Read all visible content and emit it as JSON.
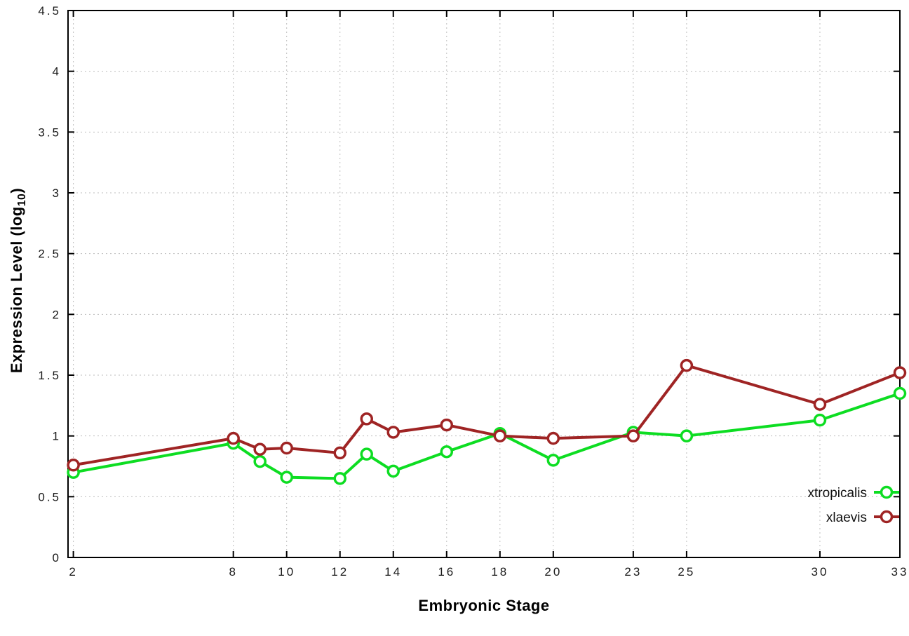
{
  "chart_data": {
    "type": "line",
    "title": "",
    "xlabel": "Embryonic Stage",
    "ylabel_prefix": "Expression Level (log",
    "ylabel_sub": "10",
    "ylabel_suffix": ")",
    "xlim": [
      1.8,
      33
    ],
    "ylim": [
      0,
      4.5
    ],
    "grid": true,
    "legend_position": "bottom-right-inside",
    "x": [
      2,
      8,
      9,
      10,
      12,
      13,
      14,
      16,
      18,
      20,
      23,
      25,
      30,
      33
    ],
    "x_ticks": [
      2,
      8,
      10,
      12,
      14,
      16,
      18,
      20,
      23,
      25,
      30,
      33
    ],
    "x_tick_labels": [
      "2",
      "8",
      "10",
      "12",
      "14",
      "16",
      "18",
      "20",
      "23",
      "25",
      "30",
      "33"
    ],
    "y_ticks": [
      0,
      0.5,
      1,
      1.5,
      2,
      2.5,
      3,
      3.5,
      4,
      4.5
    ],
    "y_tick_labels": [
      "0",
      "0.5",
      "1",
      "1.5",
      "2",
      "2.5",
      "3",
      "3.5",
      "4",
      "4.5"
    ],
    "series": [
      {
        "name": "xtropicalis",
        "color": "#0ddd22",
        "values": [
          0.7,
          0.94,
          0.79,
          0.66,
          0.65,
          0.85,
          0.71,
          0.87,
          1.02,
          0.8,
          1.03,
          1.0,
          1.13,
          1.35
        ]
      },
      {
        "name": "xlaevis",
        "color": "#9f2424",
        "values": [
          0.76,
          0.98,
          0.89,
          0.9,
          0.86,
          1.14,
          1.03,
          1.09,
          1.0,
          0.98,
          1.0,
          1.58,
          1.26,
          1.52
        ]
      }
    ]
  }
}
